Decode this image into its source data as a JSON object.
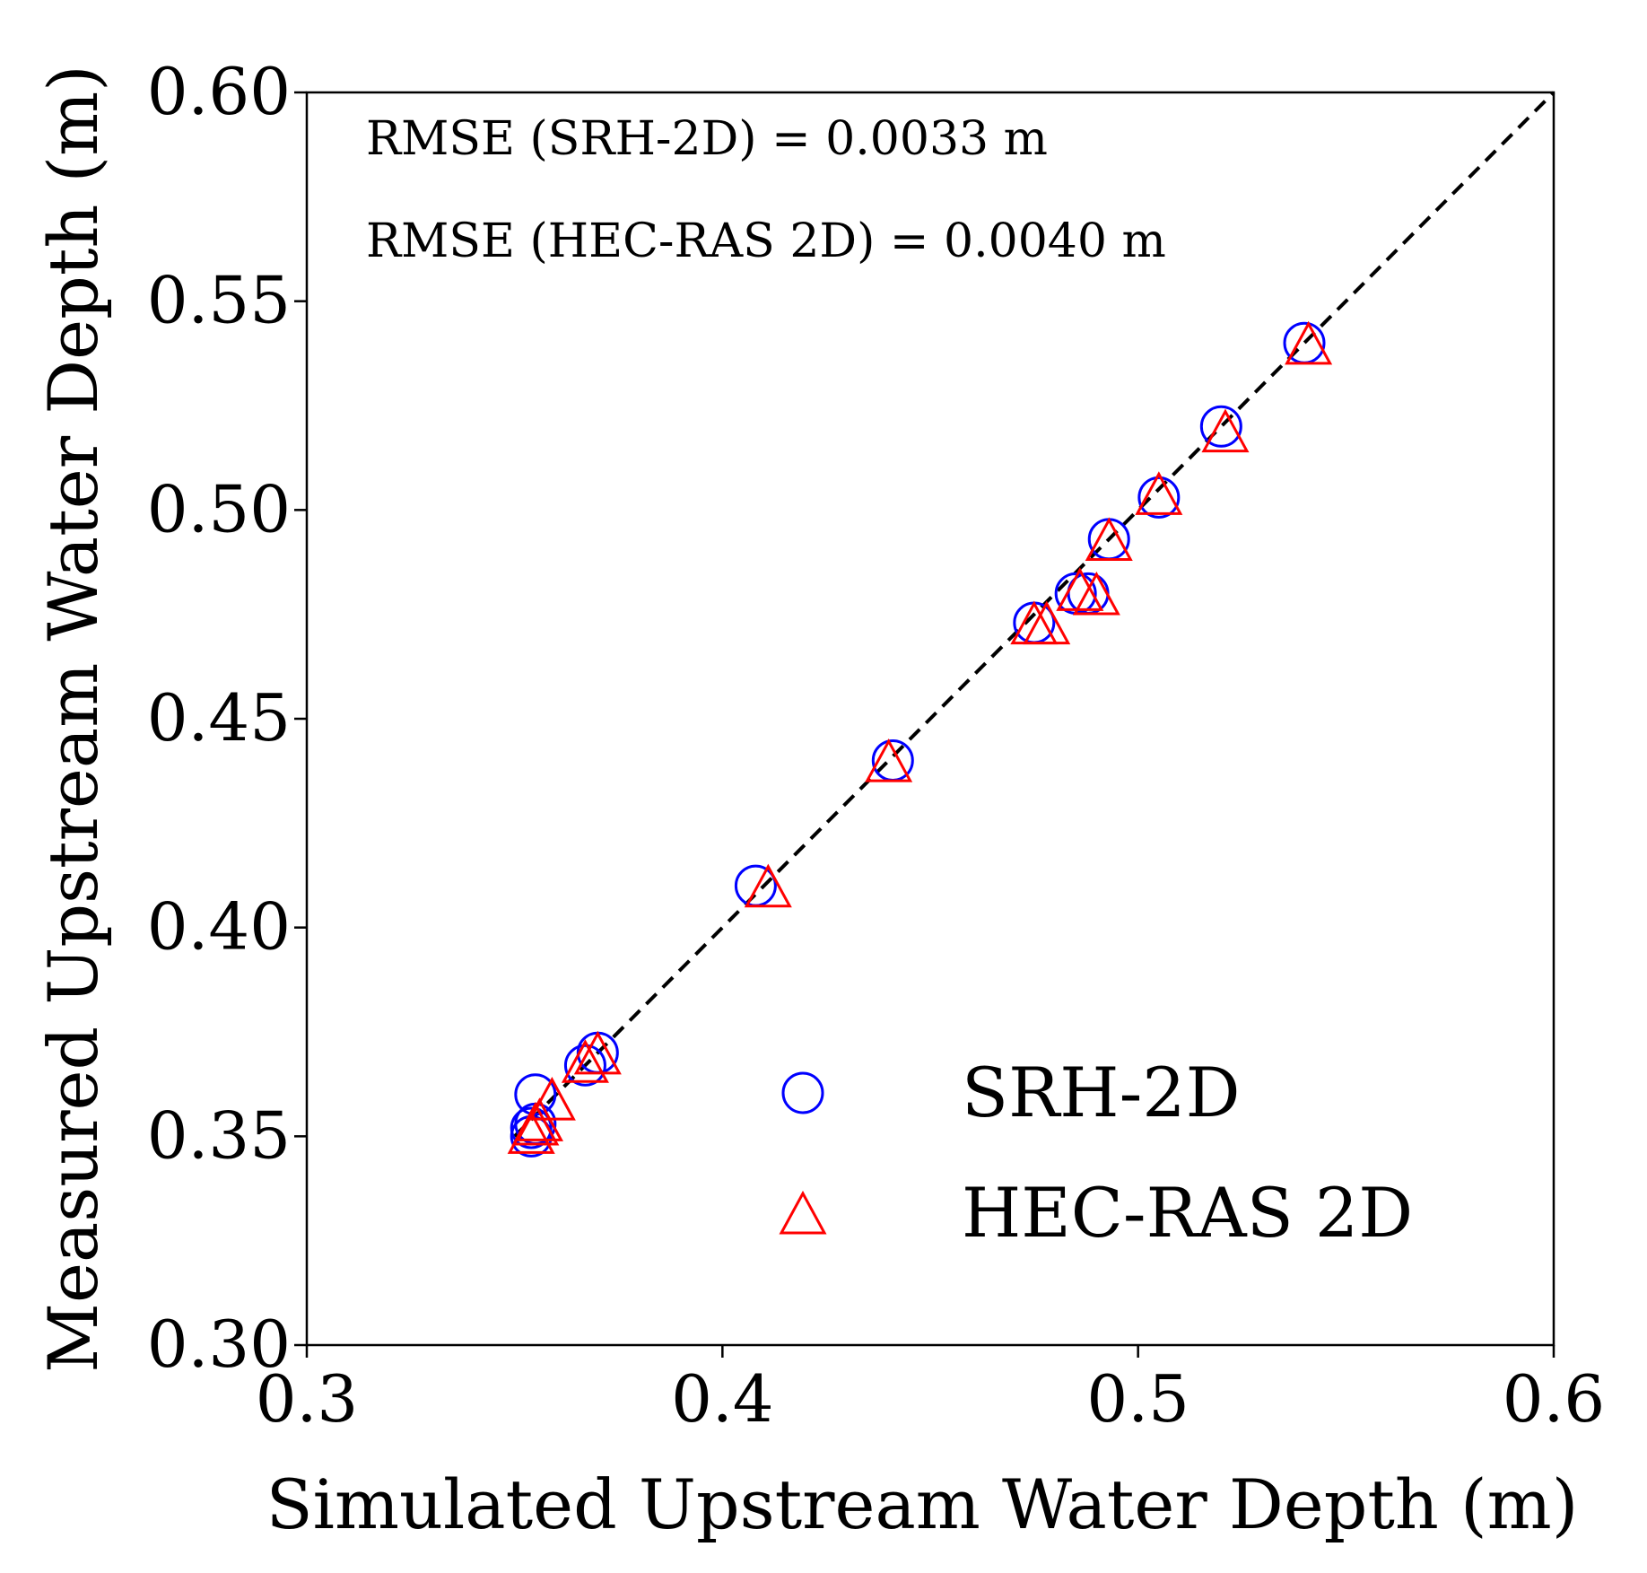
{
  "chart_data": {
    "type": "scatter",
    "xlabel": "Simulated Upstream Water Depth (m)",
    "ylabel": "Measured Upstream Water Depth (m)",
    "xlim": [
      0.3,
      0.6
    ],
    "ylim": [
      0.3,
      0.6
    ],
    "x_ticks": [
      "0.3",
      "0.4",
      "0.5",
      "0.6"
    ],
    "y_ticks": [
      "0.30",
      "0.35",
      "0.40",
      "0.45",
      "0.50",
      "0.55",
      "0.60"
    ],
    "grid": false,
    "legend_position": "lower-right",
    "reference_line": {
      "style": "dashed",
      "color": "#000000",
      "from": [
        0.35,
        0.35
      ],
      "to": [
        0.6,
        0.6
      ]
    },
    "annotations": [
      "RMSE (SRH-2D) = 0.0033 m",
      "RMSE (HEC-RAS 2D) = 0.0040 m"
    ],
    "series": [
      {
        "name": "SRH-2D",
        "marker": "circle-open",
        "color": "#0000ff",
        "points": [
          [
            0.354,
            0.35
          ],
          [
            0.354,
            0.352
          ],
          [
            0.355,
            0.353
          ],
          [
            0.355,
            0.36
          ],
          [
            0.367,
            0.367
          ],
          [
            0.37,
            0.37
          ],
          [
            0.408,
            0.41
          ],
          [
            0.441,
            0.44
          ],
          [
            0.475,
            0.473
          ],
          [
            0.485,
            0.48
          ],
          [
            0.488,
            0.48
          ],
          [
            0.493,
            0.493
          ],
          [
            0.505,
            0.503
          ],
          [
            0.52,
            0.52
          ],
          [
            0.54,
            0.54
          ]
        ]
      },
      {
        "name": "HEC-RAS 2D",
        "marker": "triangle-open",
        "color": "#ff0000",
        "points": [
          [
            0.354,
            0.35
          ],
          [
            0.355,
            0.352
          ],
          [
            0.356,
            0.353
          ],
          [
            0.359,
            0.358
          ],
          [
            0.367,
            0.367
          ],
          [
            0.37,
            0.369
          ],
          [
            0.411,
            0.409
          ],
          [
            0.44,
            0.439
          ],
          [
            0.475,
            0.472
          ],
          [
            0.478,
            0.472
          ],
          [
            0.486,
            0.48
          ],
          [
            0.49,
            0.479
          ],
          [
            0.493,
            0.492
          ],
          [
            0.505,
            0.503
          ],
          [
            0.521,
            0.518
          ],
          [
            0.541,
            0.539
          ]
        ]
      }
    ]
  }
}
